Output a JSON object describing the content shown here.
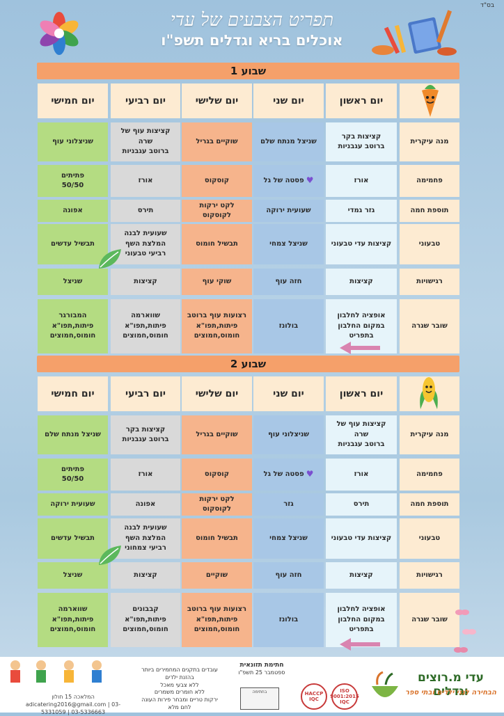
{
  "tag": "בס\"ד",
  "title": "תפריט הצבעים של עדי",
  "subtitle": "אוכלים בריא וגדלים תשפ\"ו",
  "weeks": [
    {
      "label": "שבוע 1",
      "days": [
        "יום ראשון",
        "יום שני",
        "יום שלישי",
        "יום רביעי",
        "יום חמישי"
      ],
      "rows": [
        {
          "label": "מנה עיקרית",
          "cells": [
            "קציצות בקר\nברוטב עגבניות",
            "שניצל מנתח שלם",
            "שוקיים בגריל",
            "קציצות עוף של שרה\nברוטב עגבניות",
            "שניצלוני עוף"
          ]
        },
        {
          "label": "פחמימה",
          "cells": [
            "אורז",
            "פסטה של גל",
            "קוסקוס",
            "אורז",
            "פתיתים\n50/50"
          ]
        },
        {
          "label": "תוספת חמה",
          "cells": [
            "גזר גמדי",
            "שעועית ירוקה",
            "לקט ירקות\nלקוסקוס",
            "תירס",
            "אפונה"
          ]
        },
        {
          "label": "טבעוני",
          "cells": [
            "קציצות עדי טבעוני",
            "שניצל צמחי",
            "תבשיל חומוס",
            "שעועית לבנה\nהמלצת השף\nרביעי טבעוני",
            "תבשיל עדשים"
          ]
        },
        {
          "label": "רגישויות",
          "cells": [
            "קציצות",
            "חזה עוף",
            "שוקי עוף",
            "קציצות",
            "שניצל"
          ]
        },
        {
          "label": "שובר שגרה",
          "cells": [
            "אופציה לחלבון\nבמקום החלבון\nבתפריט",
            "בולונז",
            "רצועות עוף ברוטב\nפיתות,תפו\"א\nחומוס,חמוצים",
            "שווארמה\nפיתות,תפו\"א\nחומוס,חמוצים",
            "המבורגר\nפיתות,תפו\"א\nחומוס,חמוצים"
          ]
        }
      ]
    },
    {
      "label": "שבוע 2",
      "days": [
        "יום ראשון",
        "יום שני",
        "יום שלישי",
        "יום רביעי",
        "יום חמישי"
      ],
      "rows": [
        {
          "label": "מנה עיקרית",
          "cells": [
            "קציצות עוף של שרה\nברוטב עגבניות",
            "שניצלוני עוף",
            "שוקיים בגריל",
            "קציצות בקר\nברוטב עגבניות",
            "שניצל מנתח שלם"
          ]
        },
        {
          "label": "פחמימה",
          "cells": [
            "אורז",
            "פסטה של גל",
            "קוסקוס",
            "אורז",
            "פתיתים\n50/50"
          ]
        },
        {
          "label": "תוספת חמה",
          "cells": [
            "תירס",
            "גזר",
            "לקט ירקות\nלקוסקוס",
            "אפונה",
            "שעועית ירוקה"
          ]
        },
        {
          "label": "טבעוני",
          "cells": [
            "קציצות עדי טבעוני",
            "שניצל צמחי",
            "תבשיל חומוס",
            "שעועית לבנה\nהמלצת השף\nרביעי צמחוני",
            "תבשיל עדשים"
          ]
        },
        {
          "label": "רגישויות",
          "cells": [
            "קציצות",
            "חזה עוף",
            "שוקיים",
            "קציצות",
            "שניצל"
          ]
        },
        {
          "label": "שובר שגרה",
          "cells": [
            "אופציה לחלבון\nבמקום החלבון\nבתפריט",
            "בולונז",
            "רצועות עוף ברוטב\nפיתות,תפו\"א\nחומוס,חמוצים",
            "קבבונים\nפיתות,תפו\"א\nחומוס,חמוצים",
            "שווארמה\nפיתות,תפו\"א\nחומוס,חמוצים"
          ]
        }
      ]
    }
  ],
  "footer": {
    "brand": "עדי מ.רוצים וגדלים",
    "slogan": "הבחירה לגני ילדים ובתי ספר",
    "nutrition_title": "חתימת תזונאית",
    "nutrition_date": "ספטמבר 25 תשפ\"ו",
    "stamp_text": "בחתימה",
    "commitment": [
      "עובדים בתקנים המחמירים ביותר",
      "בהזנת ילדים",
      "ללא צבעי מאכל",
      "ללא חומרים משמרים",
      "ירקות טריים ומבחר פירות העונה",
      "לחם מלא"
    ],
    "address": "המלאכה 15 חולון",
    "phone1": "03-5331059",
    "phone2": "03-5336663",
    "email": "adicatering2016@gmail.com",
    "seal1": "HACCP IQC",
    "seal2": "ISO 9001:2015 IQC"
  },
  "colors": {
    "sunday": "#e6f4fa",
    "monday": "#a8c7e6",
    "tuesday": "#f6b48c",
    "wednesday": "#d9d9d9",
    "thursday": "#b4dc82",
    "week_bar": "#f5a06a",
    "labels": "#fdebd2"
  }
}
